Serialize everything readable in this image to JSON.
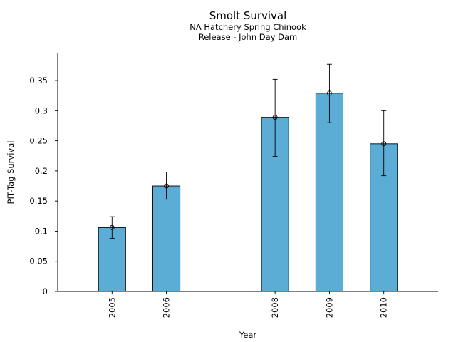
{
  "chart_data": {
    "type": "bar",
    "title": "Smolt Survival",
    "subtitle_lines": [
      "NA Hatchery Spring Chinook",
      "Release - John Day Dam"
    ],
    "xlabel": "Year",
    "ylabel": "PIT-Tag Survival",
    "years_axis": [
      2004,
      2011
    ],
    "categories": [
      "2005",
      "2006",
      "2008",
      "2009",
      "2010"
    ],
    "x": [
      2005,
      2006,
      2008,
      2009,
      2010
    ],
    "values": [
      0.106,
      0.175,
      0.289,
      0.329,
      0.245
    ],
    "error_low": [
      0.088,
      0.153,
      0.224,
      0.28,
      0.192
    ],
    "error_high": [
      0.124,
      0.198,
      0.352,
      0.377,
      0.3
    ],
    "ylim": [
      0,
      0.395
    ],
    "yticks": [
      0,
      0.05,
      0.1,
      0.15,
      0.2,
      0.25,
      0.3,
      0.35
    ],
    "ytick_labels": [
      "0",
      "0.05",
      "0.1",
      "0.15",
      "0.2",
      "0.25",
      "0.3",
      "0.35"
    ],
    "grid": false,
    "legend": "none",
    "bar_color": "#5badd6",
    "edge_color": "#000000"
  }
}
